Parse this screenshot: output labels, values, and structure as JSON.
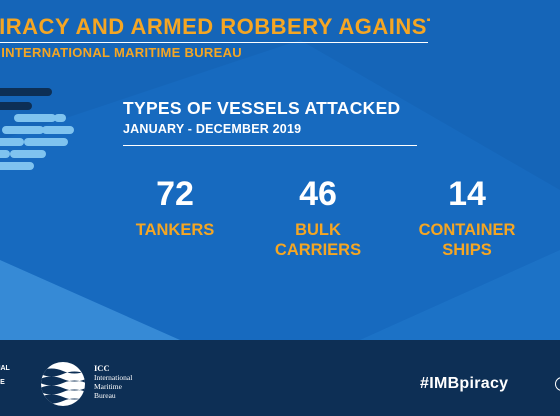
{
  "header": {
    "title": "PIRACY AND ARMED ROBBERY AGAINST SHIPS",
    "subtitle": "ICC INTERNATIONAL MARITIME BUREAU"
  },
  "panel": {
    "title": "TYPES OF VESSELS ATTACKED",
    "subtitle": "JANUARY - DECEMBER 2019"
  },
  "stats": [
    {
      "value": "72",
      "label_line1": "TANKERS",
      "label_line2": ""
    },
    {
      "value": "46",
      "label_line1": "BULK",
      "label_line2": "CARRIERS"
    },
    {
      "value": "14",
      "label_line1": "CONTAINER",
      "label_line2": "SHIPS"
    }
  ],
  "footer": {
    "left_line1": "ONAL",
    "left_line2": "RCE",
    "icc_name": "ICC",
    "icc_line1": "International",
    "icc_line2": "Maritime",
    "icc_line3": "Bureau",
    "hashtag": "#IMBpiracy"
  },
  "colors": {
    "background": "#1565b8",
    "accent": "#f5a623",
    "footer": "#0d2f55",
    "text": "#ffffff"
  },
  "icons": {
    "logo": "imb-wave-globe-icon",
    "decoration": "wave-stripes-icon"
  }
}
